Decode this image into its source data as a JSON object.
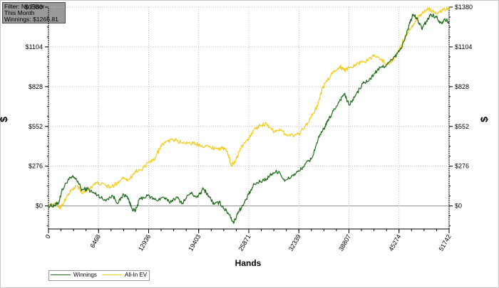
{
  "info": {
    "filter": "Filter: No Filter",
    "period": "This Month",
    "winnings": "Winnings: $1266.81"
  },
  "colors": {
    "winnings": "#1e6b1a",
    "allin_ev": "#f2cc1e",
    "grid": "#bdbdbd",
    "zero_line": "#8c8c8c"
  },
  "chart_data": {
    "type": "line",
    "xlabel": "Hands",
    "ylabel": "$",
    "xlim": [
      0,
      51742
    ],
    "ylim": [
      -160,
      1380
    ],
    "x_ticks": [
      0,
      6468,
      12936,
      19403,
      25871,
      32339,
      38807,
      45274,
      51742
    ],
    "y_ticks": [
      {
        "value": 0,
        "label": "$0"
      },
      {
        "value": 276,
        "label": "$276"
      },
      {
        "value": 552,
        "label": "$552"
      },
      {
        "value": 828,
        "label": "$828"
      },
      {
        "value": 1104,
        "label": "$1104"
      },
      {
        "value": 1380,
        "label": "$1380"
      }
    ],
    "grid": true,
    "legend_position": "bottom-left",
    "series": [
      {
        "name": "Winnings",
        "color": "#1e6b1a",
        "points": [
          [
            0,
            0
          ],
          [
            800,
            5
          ],
          [
            1300,
            20
          ],
          [
            1700,
            100
          ],
          [
            2500,
            180
          ],
          [
            3200,
            200
          ],
          [
            3800,
            170
          ],
          [
            4300,
            110
          ],
          [
            5000,
            120
          ],
          [
            5800,
            90
          ],
          [
            6400,
            75
          ],
          [
            7200,
            40
          ],
          [
            8300,
            70
          ],
          [
            9000,
            20
          ],
          [
            9700,
            80
          ],
          [
            10300,
            55
          ],
          [
            10700,
            -10
          ],
          [
            11200,
            -40
          ],
          [
            11800,
            50
          ],
          [
            12800,
            70
          ],
          [
            13900,
            40
          ],
          [
            14900,
            60
          ],
          [
            15600,
            25
          ],
          [
            16500,
            60
          ],
          [
            17300,
            20
          ],
          [
            18300,
            90
          ],
          [
            19300,
            60
          ],
          [
            20000,
            120
          ],
          [
            20700,
            70
          ],
          [
            21400,
            10
          ],
          [
            22100,
            25
          ],
          [
            22700,
            -20
          ],
          [
            23400,
            -60
          ],
          [
            23900,
            -120
          ],
          [
            24500,
            -40
          ],
          [
            25100,
            0
          ],
          [
            25871,
            80
          ],
          [
            26600,
            150
          ],
          [
            27400,
            170
          ],
          [
            28200,
            190
          ],
          [
            29000,
            230
          ],
          [
            29800,
            240
          ],
          [
            30500,
            170
          ],
          [
            31500,
            210
          ],
          [
            32339,
            240
          ],
          [
            33200,
            290
          ],
          [
            34000,
            330
          ],
          [
            34800,
            460
          ],
          [
            35400,
            520
          ],
          [
            36000,
            580
          ],
          [
            36800,
            660
          ],
          [
            37600,
            730
          ],
          [
            38200,
            780
          ],
          [
            38807,
            700
          ],
          [
            39600,
            760
          ],
          [
            40600,
            850
          ],
          [
            41400,
            870
          ],
          [
            42100,
            920
          ],
          [
            42900,
            960
          ],
          [
            43700,
            980
          ],
          [
            44500,
            1020
          ],
          [
            45274,
            1070
          ],
          [
            46000,
            1150
          ],
          [
            46600,
            1260
          ],
          [
            47100,
            1330
          ],
          [
            47700,
            1290
          ],
          [
            48200,
            1230
          ],
          [
            48800,
            1280
          ],
          [
            49400,
            1330
          ],
          [
            50100,
            1310
          ],
          [
            50700,
            1270
          ],
          [
            51200,
            1300
          ],
          [
            51742,
            1270
          ]
        ]
      },
      {
        "name": "All-In EV",
        "color": "#f2cc1e",
        "points": [
          [
            0,
            0
          ],
          [
            900,
            8
          ],
          [
            1600,
            -10
          ],
          [
            2300,
            60
          ],
          [
            3000,
            110
          ],
          [
            3700,
            140
          ],
          [
            4300,
            90
          ],
          [
            5100,
            110
          ],
          [
            5800,
            150
          ],
          [
            6468,
            160
          ],
          [
            7400,
            140
          ],
          [
            8100,
            130
          ],
          [
            8900,
            160
          ],
          [
            9700,
            200
          ],
          [
            10400,
            180
          ],
          [
            11200,
            240
          ],
          [
            12000,
            250
          ],
          [
            12936,
            300
          ],
          [
            13700,
            320
          ],
          [
            14500,
            420
          ],
          [
            15400,
            450
          ],
          [
            16300,
            460
          ],
          [
            17100,
            440
          ],
          [
            18000,
            440
          ],
          [
            19000,
            430
          ],
          [
            19800,
            420
          ],
          [
            20700,
            410
          ],
          [
            21600,
            400
          ],
          [
            22500,
            400
          ],
          [
            23100,
            380
          ],
          [
            23600,
            280
          ],
          [
            24200,
            320
          ],
          [
            24900,
            410
          ],
          [
            25871,
            470
          ],
          [
            26600,
            530
          ],
          [
            27300,
            560
          ],
          [
            28200,
            570
          ],
          [
            29000,
            520
          ],
          [
            29800,
            530
          ],
          [
            30600,
            500
          ],
          [
            31500,
            490
          ],
          [
            32339,
            500
          ],
          [
            33200,
            560
          ],
          [
            34100,
            630
          ],
          [
            34800,
            700
          ],
          [
            35400,
            820
          ],
          [
            36000,
            870
          ],
          [
            36800,
            930
          ],
          [
            37600,
            970
          ],
          [
            38200,
            940
          ],
          [
            38807,
            960
          ],
          [
            39600,
            980
          ],
          [
            40400,
            1000
          ],
          [
            41300,
            1010
          ],
          [
            42100,
            1050
          ],
          [
            42900,
            1020
          ],
          [
            43700,
            980
          ],
          [
            44500,
            1010
          ],
          [
            45274,
            1080
          ],
          [
            46000,
            1170
          ],
          [
            46700,
            1220
          ],
          [
            47400,
            1280
          ],
          [
            48100,
            1330
          ],
          [
            48900,
            1370
          ],
          [
            49600,
            1350
          ],
          [
            50300,
            1340
          ],
          [
            51000,
            1360
          ],
          [
            51742,
            1370
          ]
        ]
      }
    ]
  }
}
